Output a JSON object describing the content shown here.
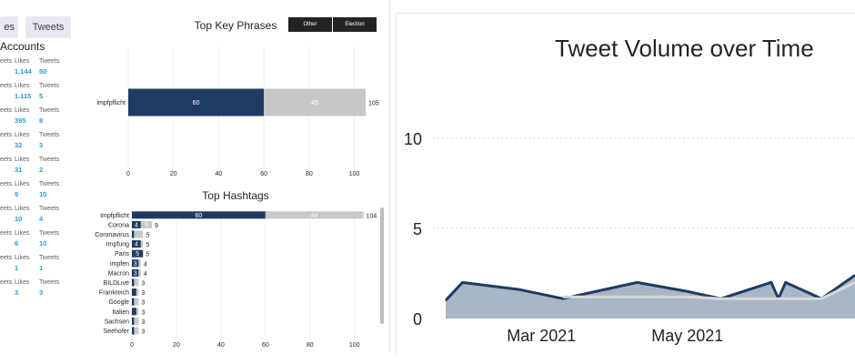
{
  "tabs": {
    "likes": "es",
    "tweets": "Tweets"
  },
  "accounts": {
    "title": "Accounts",
    "likes_label": "Likes",
    "tweets_label": "Tweets",
    "partial_label": "eets",
    "rows": [
      {
        "likes": "1.144",
        "tweets": "50"
      },
      {
        "likes": "1.115",
        "tweets": "5"
      },
      {
        "likes": "395",
        "tweets": "8"
      },
      {
        "likes": "32",
        "tweets": "3"
      },
      {
        "likes": "31",
        "tweets": "2"
      },
      {
        "likes": "9",
        "tweets": "10"
      },
      {
        "likes": "10",
        "tweets": "4"
      },
      {
        "likes": "6",
        "tweets": "10"
      },
      {
        "likes": "1",
        "tweets": "1"
      },
      {
        "likes": "3",
        "tweets": "3"
      }
    ]
  },
  "filters": {
    "other": "Other",
    "election": "Election"
  },
  "colors": {
    "dark": "#1f3b63",
    "light": "#c8c8c8",
    "accent_blue": "#2d9cdb",
    "area": "#9aa9bd"
  },
  "chart_data": [
    {
      "type": "bar",
      "title": "Top Key Phrases",
      "categories": [
        "impfpflicht"
      ],
      "series": [
        {
          "values": [
            60
          ]
        },
        {
          "values": [
            45
          ]
        }
      ],
      "totals": [
        "105"
      ],
      "inbar_labels": [
        [
          "60",
          "45"
        ]
      ],
      "xlim": [
        0,
        105
      ],
      "xticks": [
        0,
        20,
        40,
        60,
        80,
        100
      ]
    },
    {
      "type": "bar",
      "title": "Top Hashtags",
      "categories": [
        "Impfpflicht",
        "Corona",
        "Coronavirus",
        "Impfung",
        "Paris",
        "impfen",
        "Macron",
        "BILDLive",
        "Frankreich",
        "Google",
        "Italien",
        "Sachsen",
        "Seehofer"
      ],
      "series": [
        {
          "values": [
            60,
            4,
            1,
            4,
            5,
            3,
            3,
            1,
            2,
            1,
            2,
            1,
            1
          ]
        },
        {
          "values": [
            44,
            5,
            4,
            1,
            0,
            1,
            1,
            2,
            1,
            2,
            1,
            2,
            2
          ]
        }
      ],
      "totals": [
        "104",
        "9",
        "5",
        "5",
        "5",
        "4",
        "4",
        "3",
        "3",
        "3",
        "3",
        "3",
        "3"
      ],
      "inbar_dark": [
        "60",
        "4",
        "",
        "4",
        "5",
        "3",
        "3",
        "",
        "",
        "",
        "",
        "",
        ""
      ],
      "inbar_light": [
        "44",
        "5",
        "",
        "",
        "",
        "",
        "",
        "",
        "",
        "",
        "",
        "",
        ""
      ],
      "xlim": [
        0,
        105
      ],
      "xticks": [
        0,
        20,
        40,
        60,
        80,
        100
      ]
    },
    {
      "type": "area",
      "title": "Tweet Volume over Time",
      "x": [
        "2021-01-20",
        "2021-01-27",
        "2021-02-20",
        "2021-03-10",
        "2021-04-10",
        "2021-05-01",
        "2021-05-15",
        "2021-06-05",
        "2021-06-08",
        "2021-06-11",
        "2021-06-26",
        "2021-07-10"
      ],
      "series": [
        {
          "values": [
            1,
            2,
            1.6,
            1.1,
            2,
            1.5,
            1.1,
            2,
            1.1,
            2,
            1.1,
            2.4
          ]
        },
        {
          "values": [
            0,
            0,
            0,
            1.2,
            1.2,
            1.2,
            1.1,
            1.1,
            1.1,
            1.1,
            1.1,
            2
          ]
        }
      ],
      "ylim": [
        0,
        11
      ],
      "yticks": [
        "0",
        "5",
        "10"
      ],
      "xticks": [
        {
          "date": "2021-03-01",
          "label": "Mar 2021"
        },
        {
          "date": "2021-05-01",
          "label": "May 2021"
        }
      ],
      "grid": true
    }
  ]
}
